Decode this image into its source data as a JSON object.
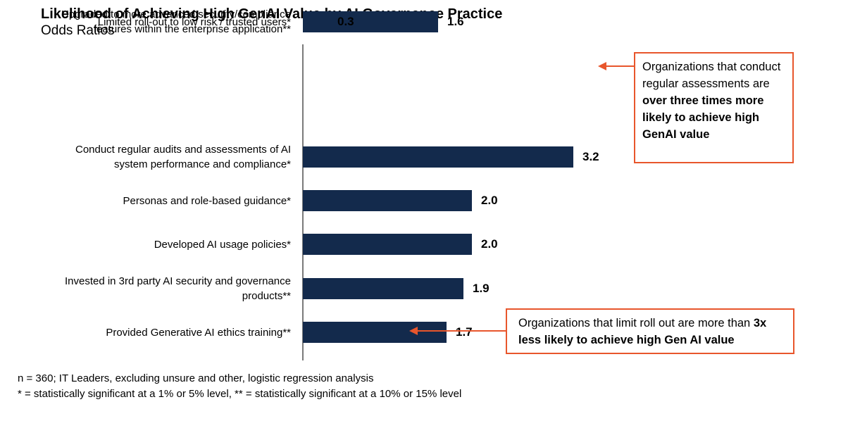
{
  "header": {
    "title": "Likelihood of Achieving High GenAI Value by AI Governance Practice",
    "subtitle": "Odds Ratios"
  },
  "chart_data": {
    "type": "bar",
    "orientation": "horizontal",
    "title": "Likelihood of Achieving High GenAI Value by AI Governance Practice",
    "subtitle": "Odds Ratios",
    "xlabel": "",
    "ylabel": "",
    "xlim": [
      0,
      3.5
    ],
    "grid": false,
    "legend": false,
    "bar_color": "#132A4C",
    "categories": [
      "Conduct regular audits and assessments of AI\nsystem performance and compliance*",
      "Personas and role-based guidance*",
      "Developed AI usage policies*",
      "Invested in 3rd party AI security and governance\nproducts**",
      "Provided Generative AI ethics training**",
      "Upgraded to more advanced security/compliance\nfeatures within the enterprise application**",
      "Limited roll-out to low risk / trusted users*"
    ],
    "values": [
      3.2,
      2.0,
      2.0,
      1.9,
      1.7,
      1.6,
      0.3
    ],
    "value_labels": [
      "3.2",
      "2.0",
      "2.0",
      "1.9",
      "1.7",
      "1.6",
      "0.3"
    ]
  },
  "annotations": [
    {
      "text_regular": "Organizations that conduct regular assessments are ",
      "text_bold": "over three times more likely to achieve high GenAI value",
      "points_to": "3.2"
    },
    {
      "text_regular": "Organizations that limit roll out are more than ",
      "text_bold": "3x less likely to achieve high Gen AI value",
      "points_to": "0.3"
    }
  ],
  "footnotes": [
    "n = 360; IT Leaders, excluding unsure and other, logistic regression analysis",
    "* = statistically significant at a 1% or 5% level, ** = statistically significant at a 10% or 15% level"
  ],
  "colors": {
    "bar": "#132A4C",
    "accent": "#E8562C",
    "axis": "#7a7a7a"
  }
}
